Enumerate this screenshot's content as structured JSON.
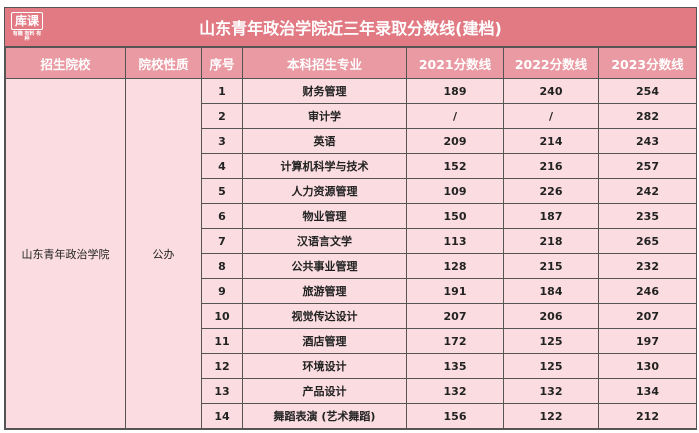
{
  "title": "山东青年政治学院近三年录取分数线(建档)",
  "logo": {
    "text": "库课",
    "sub": "有趣 有料 有种"
  },
  "headers": [
    "招生院校",
    "院校性质",
    "序号",
    "本科招生专业",
    "2021分数线",
    "2022分数线",
    "2023分数线"
  ],
  "school": "山东青年政治学院",
  "nature": "公办",
  "rows": [
    [
      "1",
      "财务管理",
      "189",
      "240",
      "254"
    ],
    [
      "2",
      "审计学",
      "/",
      "/",
      "282"
    ],
    [
      "3",
      "英语",
      "209",
      "214",
      "243"
    ],
    [
      "4",
      "计算机科学与技术",
      "152",
      "216",
      "257"
    ],
    [
      "5",
      "人力资源管理",
      "109",
      "226",
      "242"
    ],
    [
      "6",
      "物业管理",
      "150",
      "187",
      "235"
    ],
    [
      "7",
      "汉语言文学",
      "113",
      "218",
      "265"
    ],
    [
      "8",
      "公共事业管理",
      "128",
      "215",
      "232"
    ],
    [
      "9",
      "旅游管理",
      "191",
      "184",
      "246"
    ],
    [
      "10",
      "视觉传达设计",
      "207",
      "206",
      "207"
    ],
    [
      "11",
      "酒店管理",
      "172",
      "125",
      "197"
    ],
    [
      "12",
      "环境设计",
      "135",
      "125",
      "130"
    ],
    [
      "13",
      "产品设计",
      "132",
      "132",
      "134"
    ],
    [
      "14",
      "舞蹈表演 (艺术舞蹈)",
      "156",
      "122",
      "212"
    ]
  ],
  "colors": {
    "title_bg": "#e27a84",
    "header_bg": "#e99aa3",
    "body_bg": "#fbdde1"
  }
}
